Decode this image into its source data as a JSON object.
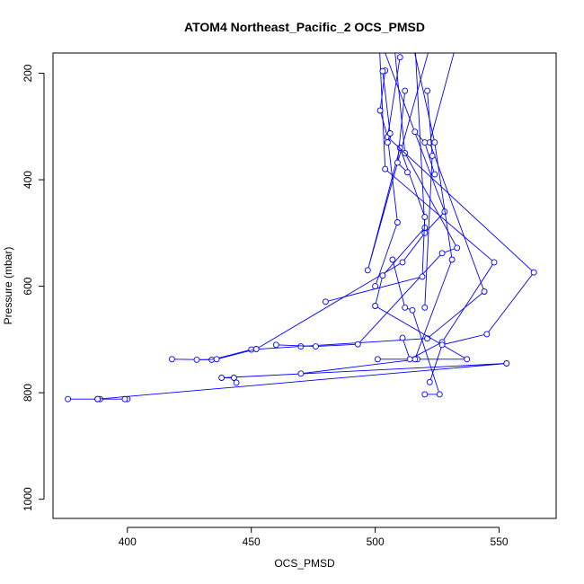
{
  "chart_data": {
    "type": "line",
    "title": "ATOM4 Northeast_Pacific_2 OCS_PMSD",
    "xlabel": "OCS_PMSD",
    "ylabel": "Pressure (mbar)",
    "xlim": [
      370,
      573
    ],
    "ylim": [
      1036,
      162
    ],
    "y_reversed": true,
    "grid": false,
    "legend": "none",
    "line_color": "#0000ff",
    "marker": "open-circle",
    "xticks": [
      400,
      450,
      500,
      550
    ],
    "yticks": [
      200,
      400,
      600,
      800,
      1000
    ],
    "series": [
      {
        "x": [
          376,
          388,
          389,
          400,
          399,
          388
        ],
        "y": [
          812,
          812,
          812,
          812,
          812,
          812
        ]
      },
      {
        "x": [
          388,
          553,
          438,
          443,
          444
        ],
        "y": [
          812,
          745,
          772,
          772,
          781
        ]
      },
      {
        "x": [
          418,
          434,
          450,
          470,
          521,
          544,
          522,
          540
        ],
        "y": [
          737,
          738,
          719,
          713,
          698,
          610,
          330,
          20
        ]
      },
      {
        "x": [
          428,
          436,
          452,
          511,
          520,
          528,
          495
        ],
        "y": [
          738,
          737,
          718,
          555,
          500,
          460,
          50
        ]
      },
      {
        "x": [
          460,
          476,
          493,
          527,
          533,
          512,
          505
        ],
        "y": [
          710,
          713,
          709,
          538,
          528,
          350,
          20
        ]
      },
      {
        "x": [
          470,
          517,
          537,
          500,
          503,
          520,
          516
        ],
        "y": [
          764,
          737,
          737,
          637,
          580,
          490,
          140
        ]
      },
      {
        "x": [
          480,
          519,
          520,
          510,
          497,
          525,
          510
        ],
        "y": [
          629,
          582,
          470,
          340,
          570,
          100,
          20
        ]
      },
      {
        "x": [
          501,
          516,
          531,
          524,
          513
        ],
        "y": [
          737,
          737,
          550,
          330,
          100
        ]
      },
      {
        "x": [
          511,
          514,
          527,
          548,
          504,
          501
        ],
        "y": [
          697,
          737,
          705,
          555,
          380,
          80
        ]
      },
      {
        "x": [
          520,
          526,
          515,
          512,
          507
        ],
        "y": [
          803,
          803,
          645,
          640,
          550
        ]
      },
      {
        "x": [
          522,
          527,
          545,
          564,
          505,
          510
        ],
        "y": [
          780,
          710,
          690,
          574,
          320,
          170
        ]
      },
      {
        "x": [
          504,
          502,
          505,
          509,
          500
        ],
        "y": [
          195,
          270,
          320,
          480,
          600
        ]
      },
      {
        "x": [
          512,
          509,
          513
        ],
        "y": [
          233,
          368,
          386
        ]
      },
      {
        "x": [
          521,
          523,
          520
        ],
        "y": [
          233,
          355,
          640
        ]
      },
      {
        "x": [
          503,
          506,
          505
        ],
        "y": [
          196,
          313,
          330
        ]
      },
      {
        "x": [
          516,
          520,
          524
        ],
        "y": [
          310,
          330,
          390
        ]
      }
    ]
  }
}
